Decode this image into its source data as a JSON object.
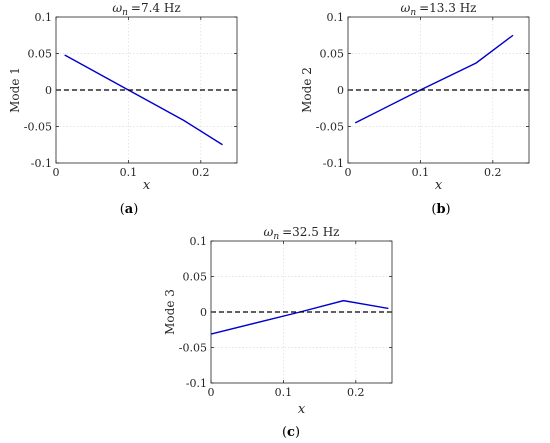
{
  "chart_data": [
    {
      "type": "line",
      "title_symbol": "ω",
      "title_sub": "n",
      "title_value": "=7.4 Hz",
      "ylabel": "Mode 1",
      "xlabel": "x",
      "caption": "(a)",
      "xlim": [
        0,
        0.25
      ],
      "ylim": [
        -0.1,
        0.1
      ],
      "xticks": [
        0,
        0.1,
        0.2
      ],
      "xtick_labels": [
        "0",
        "0.1",
        "0.2"
      ],
      "yticks": [
        -0.1,
        -0.05,
        0,
        0.05,
        0.1
      ],
      "ytick_labels": [
        "-0.1",
        "-0.05",
        "0",
        "0.05",
        "0.1"
      ],
      "grid": true,
      "series": [
        {
          "color": "#0000cc",
          "style": "solid",
          "x": [
            0.012,
            0.1,
            0.177,
            0.23
          ],
          "y": [
            0.048,
            0.0,
            -0.042,
            -0.075
          ]
        },
        {
          "color": "#000000",
          "style": "dashed",
          "x": [
            0,
            0.25
          ],
          "y": [
            0,
            0
          ]
        }
      ]
    },
    {
      "type": "line",
      "title_symbol": "ω",
      "title_sub": "n",
      "title_value": "=13.3 Hz",
      "ylabel": "Mode 2",
      "xlabel": "x",
      "caption": "(b)",
      "xlim": [
        0,
        0.25
      ],
      "ylim": [
        -0.1,
        0.1
      ],
      "xticks": [
        0,
        0.1,
        0.2
      ],
      "xtick_labels": [
        "0",
        "0.1",
        "0.2"
      ],
      "yticks": [
        -0.1,
        -0.05,
        0,
        0.05,
        0.1
      ],
      "ytick_labels": [
        "-0.1",
        "-0.05",
        "0",
        "0.05",
        "0.1"
      ],
      "grid": true,
      "series": [
        {
          "color": "#0000cc",
          "style": "solid",
          "x": [
            0.01,
            0.1,
            0.177,
            0.228
          ],
          "y": [
            -0.045,
            0.0,
            0.037,
            0.075
          ]
        },
        {
          "color": "#000000",
          "style": "dashed",
          "x": [
            0,
            0.25
          ],
          "y": [
            0,
            0
          ]
        }
      ]
    },
    {
      "type": "line",
      "title_symbol": "ω",
      "title_sub": "n",
      "title_value": "=32.5 Hz",
      "ylabel": "Mode 3",
      "xlabel": "x",
      "caption": "(c)",
      "xlim": [
        0,
        0.25
      ],
      "ylim": [
        -0.1,
        0.1
      ],
      "xticks": [
        0,
        0.1,
        0.2
      ],
      "xtick_labels": [
        "0",
        "0.1",
        "0.2"
      ],
      "yticks": [
        -0.1,
        -0.05,
        0,
        0.05,
        0.1
      ],
      "ytick_labels": [
        "-0.1",
        "-0.05",
        "0",
        "0.05",
        "0.1"
      ],
      "grid": true,
      "series": [
        {
          "color": "#0000cc",
          "style": "solid",
          "x": [
            0.0,
            0.123,
            0.183,
            0.245
          ],
          "y": [
            -0.031,
            0.0,
            0.016,
            0.005
          ]
        },
        {
          "color": "#000000",
          "style": "dashed",
          "x": [
            0,
            0.25
          ],
          "y": [
            0,
            0
          ]
        }
      ]
    }
  ]
}
